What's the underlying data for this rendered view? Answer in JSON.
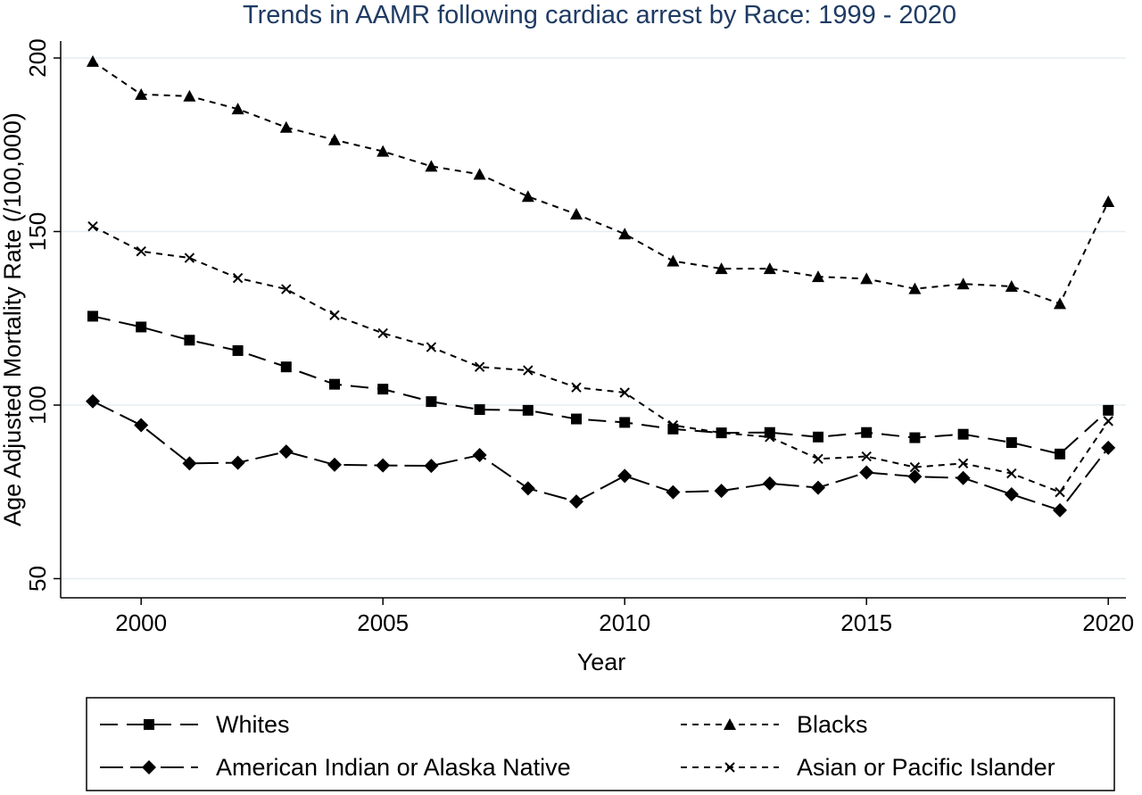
{
  "chart_data": {
    "type": "line",
    "title": "Trends in AAMR  following cardiac arrest by Race: 1999 - 2020",
    "xlabel": "Year",
    "ylabel": "Age Adjusted Mortality Rate (/100,000)",
    "xlim": [
      1999,
      2020
    ],
    "ylim": [
      47,
      204
    ],
    "xticks": [
      "2000",
      "2005",
      "2010",
      "2015",
      "2020"
    ],
    "yticks": [
      "50",
      "100",
      "150",
      "200"
    ],
    "grid": true,
    "legend_position": "bottom",
    "x": [
      1999,
      2000,
      2001,
      2002,
      2003,
      2004,
      2005,
      2006,
      2007,
      2008,
      2009,
      2010,
      2011,
      2012,
      2013,
      2014,
      2015,
      2016,
      2017,
      2018,
      2019,
      2020
    ],
    "series": [
      {
        "name": "Whites",
        "marker": "square",
        "dash": "long-dash",
        "values": [
          125.6,
          122.5,
          118.7,
          115.7,
          111.0,
          106.0,
          104.6,
          101.0,
          98.7,
          98.5,
          96.0,
          95.0,
          93.1,
          92.0,
          92.1,
          90.8,
          92.1,
          90.6,
          91.6,
          89.2,
          85.9,
          98.5
        ]
      },
      {
        "name": "Blacks",
        "marker": "triangle",
        "dash": "short-dash",
        "values": [
          199.0,
          189.5,
          189.0,
          185.3,
          180.0,
          176.4,
          173.1,
          168.8,
          166.5,
          160.1,
          155.0,
          149.3,
          141.5,
          139.3,
          139.3,
          137.0,
          136.4,
          133.5,
          134.9,
          134.2,
          129.2,
          158.6
        ]
      },
      {
        "name": "American Indian or Alaska Native",
        "marker": "diamond",
        "dash": "dash-dot",
        "values": [
          101.1,
          94.2,
          83.2,
          83.4,
          86.6,
          82.8,
          82.6,
          82.5,
          85.6,
          76.0,
          72.2,
          79.6,
          74.9,
          75.3,
          77.4,
          76.2,
          80.6,
          79.4,
          79.0,
          74.3,
          69.7,
          87.7
        ]
      },
      {
        "name": "Asian or Pacific Islander",
        "marker": "x",
        "dash": "short-dash",
        "values": [
          151.5,
          144.3,
          142.4,
          136.6,
          133.4,
          125.9,
          120.7,
          116.7,
          111.0,
          110.0,
          105.1,
          103.6,
          94.2,
          92.0,
          90.8,
          84.5,
          85.2,
          82.1,
          83.2,
          80.3,
          74.9,
          95.4
        ]
      }
    ]
  }
}
